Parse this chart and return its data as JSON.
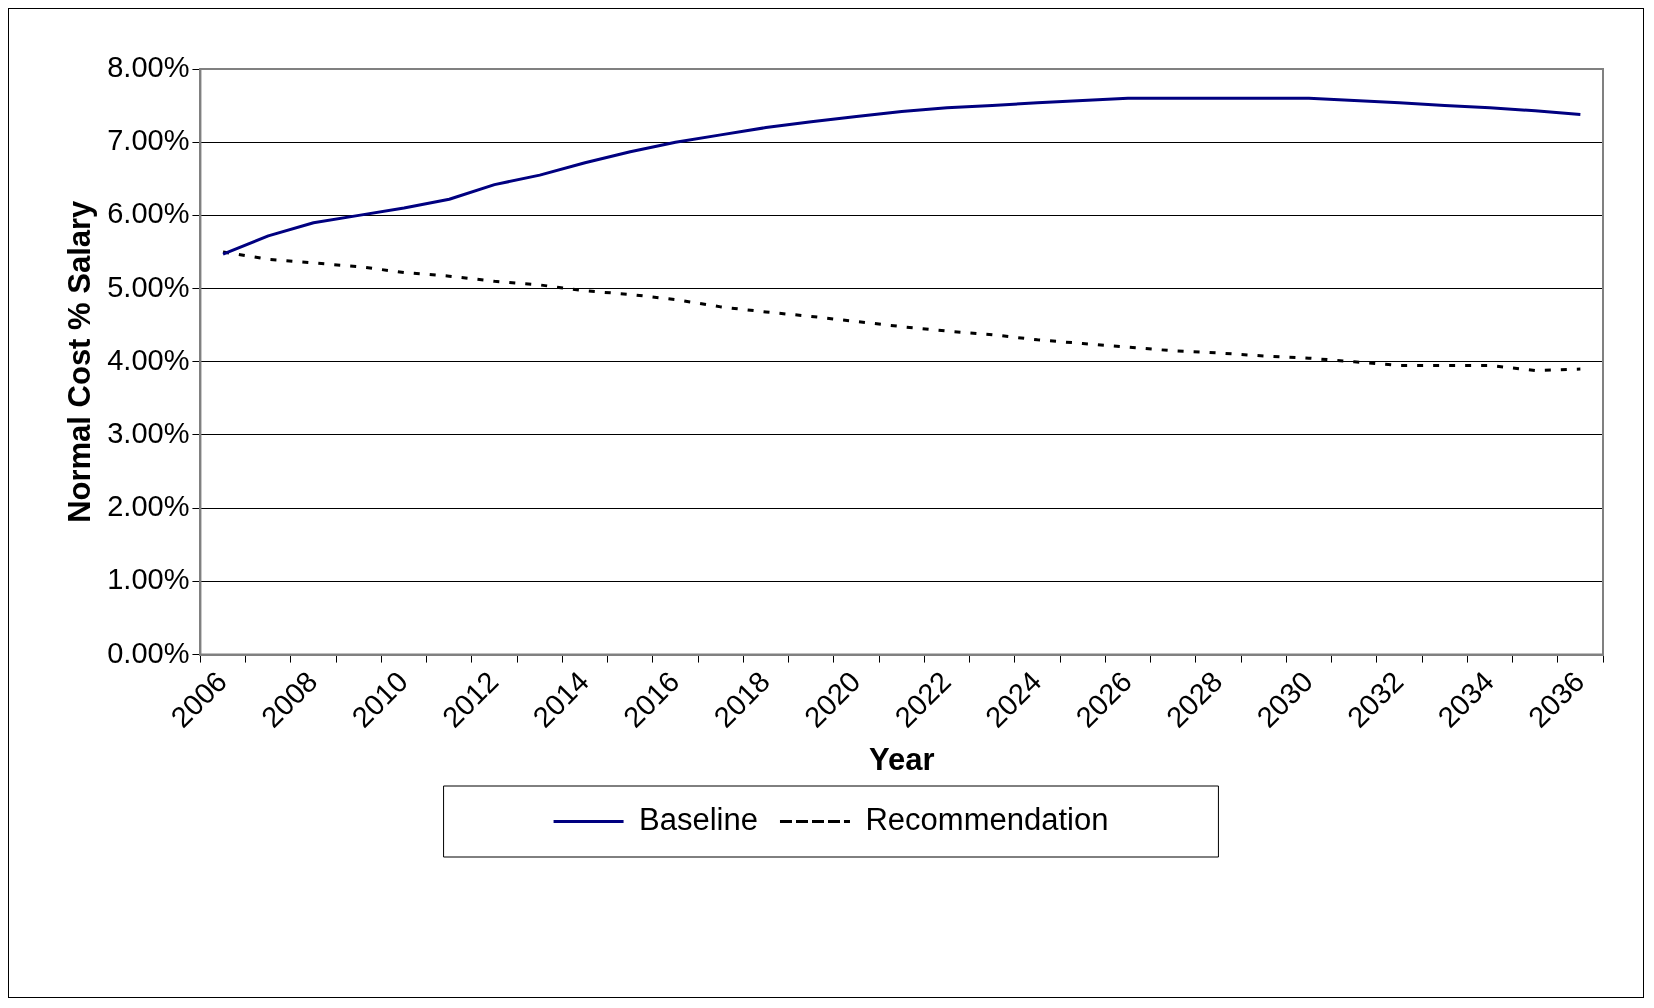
{
  "chart_data": {
    "type": "line",
    "xlabel": "Year",
    "ylabel": "Normal Cost % Salary",
    "categories": [
      "2006",
      null,
      "2008",
      null,
      "2010",
      null,
      "2012",
      null,
      "2014",
      null,
      "2016",
      null,
      "2018",
      null,
      "2020",
      null,
      "2022",
      null,
      "2024",
      null,
      "2026",
      null,
      "2028",
      null,
      "2030",
      null,
      "2032",
      null,
      "2034",
      null,
      "2036"
    ],
    "series": [
      {
        "name": "Baseline",
        "color": "#000080",
        "line_style": "solid",
        "values": [
          5.47,
          5.72,
          5.9,
          6.0,
          6.1,
          6.22,
          6.42,
          6.55,
          6.72,
          6.87,
          7.0,
          7.1,
          7.2,
          7.28,
          7.35,
          7.42,
          7.47,
          7.5,
          7.54,
          7.57,
          7.6,
          7.6,
          7.6,
          7.6,
          7.6,
          7.57,
          7.54,
          7.5,
          7.47,
          7.43,
          7.38
        ]
      },
      {
        "name": "Recommendation",
        "color": "#000000",
        "line_style": "dotted",
        "values": [
          5.5,
          5.4,
          5.35,
          5.3,
          5.22,
          5.17,
          5.1,
          5.05,
          4.97,
          4.92,
          4.85,
          4.75,
          4.68,
          4.62,
          4.55,
          4.48,
          4.42,
          4.37,
          4.3,
          4.25,
          4.2,
          4.15,
          4.12,
          4.08,
          4.05,
          4.0,
          3.95,
          3.95,
          3.95,
          3.88,
          3.9
        ]
      }
    ],
    "ylim": [
      0,
      8
    ],
    "yticks": [
      {
        "value": 0,
        "label": "0.00%"
      },
      {
        "value": 1,
        "label": "1.00%"
      },
      {
        "value": 2,
        "label": "2.00%"
      },
      {
        "value": 3,
        "label": "3.00%"
      },
      {
        "value": 4,
        "label": "4.00%"
      },
      {
        "value": 5,
        "label": "5.00%"
      },
      {
        "value": 6,
        "label": "6.00%"
      },
      {
        "value": 7,
        "label": "7.00%"
      },
      {
        "value": 8,
        "label": "8.00%"
      }
    ],
    "grid": "y",
    "legend": "bottom",
    "marker": "none"
  }
}
